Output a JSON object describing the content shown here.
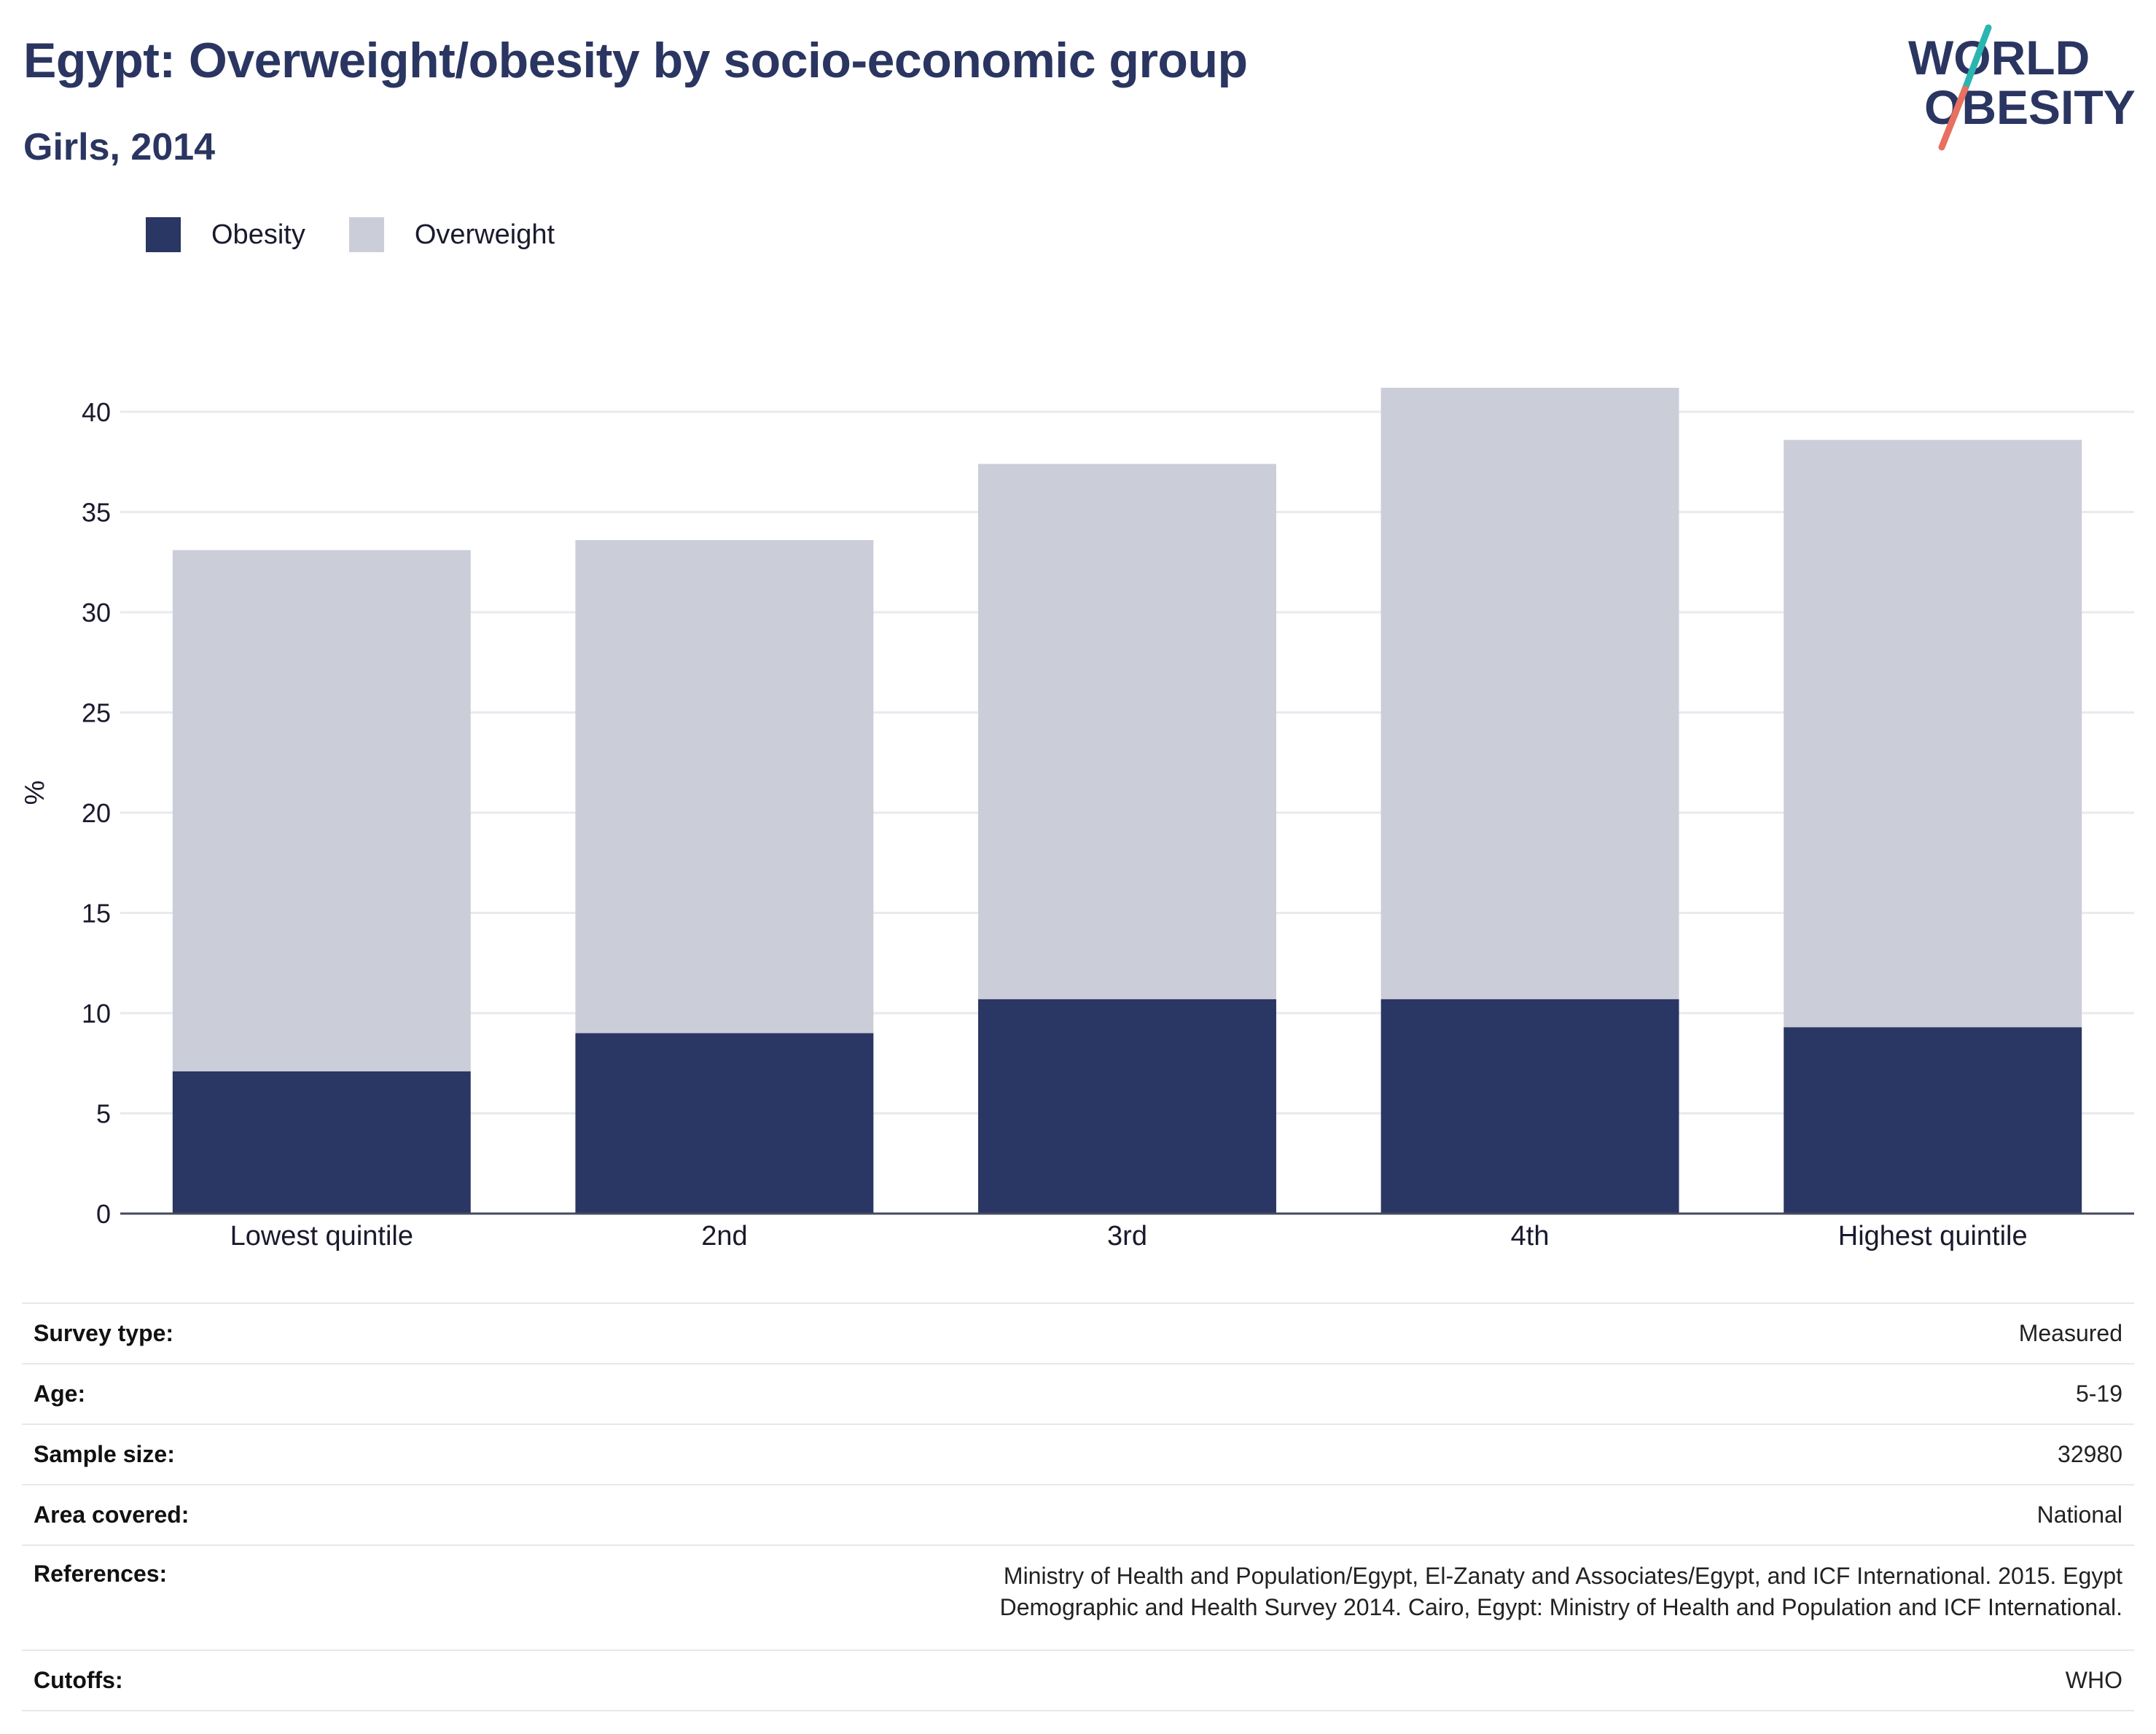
{
  "header": {
    "title": "Egypt: Overweight/obesity by socio-economic group",
    "subtitle": "Girls, 2014"
  },
  "logo": {
    "line1": "WORLD",
    "line2": "OBESITY"
  },
  "colors": {
    "obesity": "#2a3663",
    "overweight": "#cbcdd9",
    "title": "#2a3561",
    "logo_teal": "#2bb5b0",
    "logo_coral": "#e8705f"
  },
  "legend": [
    {
      "label": "Obesity",
      "color": "#2a3663"
    },
    {
      "label": "Overweight",
      "color": "#cbcdd9"
    }
  ],
  "chart_data": {
    "type": "bar",
    "stacked": true,
    "categories": [
      "Lowest quintile",
      "2nd",
      "3rd",
      "4th",
      "Highest quintile"
    ],
    "series": [
      {
        "name": "Obesity",
        "values": [
          7.1,
          9.0,
          10.7,
          10.7,
          9.3
        ]
      },
      {
        "name": "Overweight",
        "values": [
          26.0,
          24.6,
          26.7,
          30.5,
          29.3
        ]
      }
    ],
    "ylabel": "%",
    "xlabel": "",
    "ylim": [
      0,
      42
    ],
    "yticks": [
      0,
      5,
      10,
      15,
      20,
      25,
      30,
      35,
      40
    ],
    "grid": true,
    "legend_position": "top-left"
  },
  "info": [
    {
      "label": "Survey type:",
      "value": "Measured"
    },
    {
      "label": "Age:",
      "value": "5-19"
    },
    {
      "label": "Sample size:",
      "value": "32980"
    },
    {
      "label": "Area covered:",
      "value": "National"
    },
    {
      "label": "References:",
      "value": "Ministry of Health and Population/Egypt, El-Zanaty and Associates/Egypt, and ICF International. 2015. Egypt Demographic and Health Survey 2014. Cairo, Egypt: Ministry of Health and Population and ICF International."
    },
    {
      "label": "Cutoffs:",
      "value": "WHO"
    }
  ]
}
